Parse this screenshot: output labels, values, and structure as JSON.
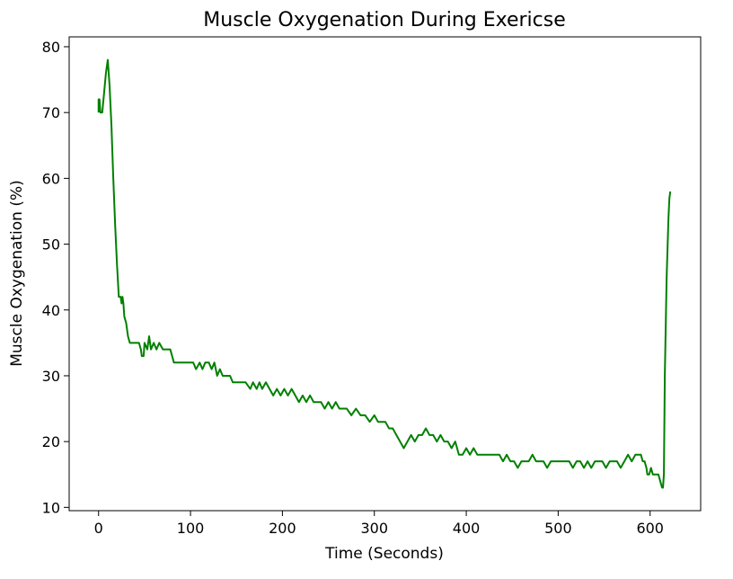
{
  "chart_data": {
    "type": "line",
    "title": "Muscle Oxygenation During Exericse",
    "xlabel": "Time (Seconds)",
    "ylabel": "Muscle Oxygenation (%)",
    "xlim": [
      -32,
      655
    ],
    "ylim": [
      9.5,
      81.5
    ],
    "xticks": [
      0,
      100,
      200,
      300,
      400,
      500,
      600
    ],
    "yticks": [
      10,
      20,
      30,
      40,
      50,
      60,
      70,
      80
    ],
    "grid": false,
    "series": [
      {
        "color": "#008000",
        "points": [
          [
            0,
            70
          ],
          [
            0,
            72
          ],
          [
            1,
            72
          ],
          [
            2,
            70
          ],
          [
            4,
            70
          ],
          [
            6,
            73
          ],
          [
            8,
            76
          ],
          [
            10,
            78
          ],
          [
            12,
            74
          ],
          [
            14,
            68
          ],
          [
            16,
            60
          ],
          [
            18,
            53
          ],
          [
            20,
            47
          ],
          [
            22,
            42
          ],
          [
            24,
            42
          ],
          [
            25,
            41
          ],
          [
            26,
            42
          ],
          [
            27,
            41
          ],
          [
            28,
            39
          ],
          [
            30,
            38
          ],
          [
            32,
            36
          ],
          [
            34,
            35
          ],
          [
            38,
            35
          ],
          [
            40,
            35
          ],
          [
            42,
            35
          ],
          [
            44,
            35
          ],
          [
            46,
            34
          ],
          [
            47,
            33
          ],
          [
            49,
            33
          ],
          [
            50,
            35
          ],
          [
            53,
            34
          ],
          [
            55,
            36
          ],
          [
            57,
            34
          ],
          [
            60,
            35
          ],
          [
            63,
            34
          ],
          [
            66,
            35
          ],
          [
            70,
            34
          ],
          [
            75,
            34
          ],
          [
            78,
            34
          ],
          [
            80,
            33
          ],
          [
            82,
            32
          ],
          [
            90,
            32
          ],
          [
            95,
            32
          ],
          [
            100,
            32
          ],
          [
            103,
            32
          ],
          [
            106,
            31
          ],
          [
            110,
            32
          ],
          [
            113,
            31
          ],
          [
            116,
            32
          ],
          [
            120,
            32
          ],
          [
            123,
            31
          ],
          [
            126,
            32
          ],
          [
            129,
            30
          ],
          [
            132,
            31
          ],
          [
            135,
            30
          ],
          [
            140,
            30
          ],
          [
            143,
            30
          ],
          [
            146,
            29
          ],
          [
            150,
            29
          ],
          [
            155,
            29
          ],
          [
            160,
            29
          ],
          [
            165,
            28
          ],
          [
            168,
            29
          ],
          [
            172,
            28
          ],
          [
            175,
            29
          ],
          [
            178,
            28
          ],
          [
            182,
            29
          ],
          [
            186,
            28
          ],
          [
            190,
            27
          ],
          [
            194,
            28
          ],
          [
            198,
            27
          ],
          [
            202,
            28
          ],
          [
            206,
            27
          ],
          [
            210,
            28
          ],
          [
            214,
            27
          ],
          [
            218,
            26
          ],
          [
            222,
            27
          ],
          [
            226,
            26
          ],
          [
            230,
            27
          ],
          [
            234,
            26
          ],
          [
            238,
            26
          ],
          [
            242,
            26
          ],
          [
            246,
            25
          ],
          [
            250,
            26
          ],
          [
            254,
            25
          ],
          [
            258,
            26
          ],
          [
            262,
            25
          ],
          [
            266,
            25
          ],
          [
            270,
            25
          ],
          [
            275,
            24
          ],
          [
            280,
            25
          ],
          [
            285,
            24
          ],
          [
            290,
            24
          ],
          [
            295,
            23
          ],
          [
            300,
            24
          ],
          [
            304,
            23
          ],
          [
            308,
            23
          ],
          [
            312,
            23
          ],
          [
            316,
            22
          ],
          [
            320,
            22
          ],
          [
            324,
            21
          ],
          [
            328,
            20
          ],
          [
            332,
            19
          ],
          [
            336,
            20
          ],
          [
            340,
            21
          ],
          [
            344,
            20
          ],
          [
            348,
            21
          ],
          [
            352,
            21
          ],
          [
            356,
            22
          ],
          [
            360,
            21
          ],
          [
            364,
            21
          ],
          [
            368,
            20
          ],
          [
            372,
            21
          ],
          [
            376,
            20
          ],
          [
            380,
            20
          ],
          [
            384,
            19
          ],
          [
            388,
            20
          ],
          [
            392,
            18
          ],
          [
            396,
            18
          ],
          [
            400,
            19
          ],
          [
            404,
            18
          ],
          [
            408,
            19
          ],
          [
            412,
            18
          ],
          [
            416,
            18
          ],
          [
            420,
            18
          ],
          [
            424,
            18
          ],
          [
            428,
            18
          ],
          [
            432,
            18
          ],
          [
            436,
            18
          ],
          [
            440,
            17
          ],
          [
            444,
            18
          ],
          [
            448,
            17
          ],
          [
            452,
            17
          ],
          [
            456,
            16
          ],
          [
            460,
            17
          ],
          [
            464,
            17
          ],
          [
            468,
            17
          ],
          [
            472,
            18
          ],
          [
            476,
            17
          ],
          [
            480,
            17
          ],
          [
            484,
            17
          ],
          [
            488,
            16
          ],
          [
            492,
            17
          ],
          [
            496,
            17
          ],
          [
            500,
            17
          ],
          [
            504,
            17
          ],
          [
            508,
            17
          ],
          [
            512,
            17
          ],
          [
            516,
            16
          ],
          [
            520,
            17
          ],
          [
            524,
            17
          ],
          [
            528,
            16
          ],
          [
            532,
            17
          ],
          [
            536,
            16
          ],
          [
            540,
            17
          ],
          [
            544,
            17
          ],
          [
            548,
            17
          ],
          [
            552,
            16
          ],
          [
            556,
            17
          ],
          [
            560,
            17
          ],
          [
            564,
            17
          ],
          [
            568,
            16
          ],
          [
            572,
            17
          ],
          [
            576,
            18
          ],
          [
            580,
            17
          ],
          [
            584,
            18
          ],
          [
            588,
            18
          ],
          [
            590,
            18
          ],
          [
            592,
            17
          ],
          [
            594,
            17
          ],
          [
            596,
            16
          ],
          [
            597,
            15
          ],
          [
            599,
            15
          ],
          [
            601,
            16
          ],
          [
            603,
            15
          ],
          [
            605,
            15
          ],
          [
            607,
            15
          ],
          [
            609,
            15
          ],
          [
            611,
            14
          ],
          [
            613,
            13
          ],
          [
            614,
            13
          ],
          [
            615,
            15
          ],
          [
            616,
            30
          ],
          [
            618,
            45
          ],
          [
            620,
            54
          ],
          [
            621,
            57
          ],
          [
            622,
            58
          ]
        ]
      }
    ]
  }
}
